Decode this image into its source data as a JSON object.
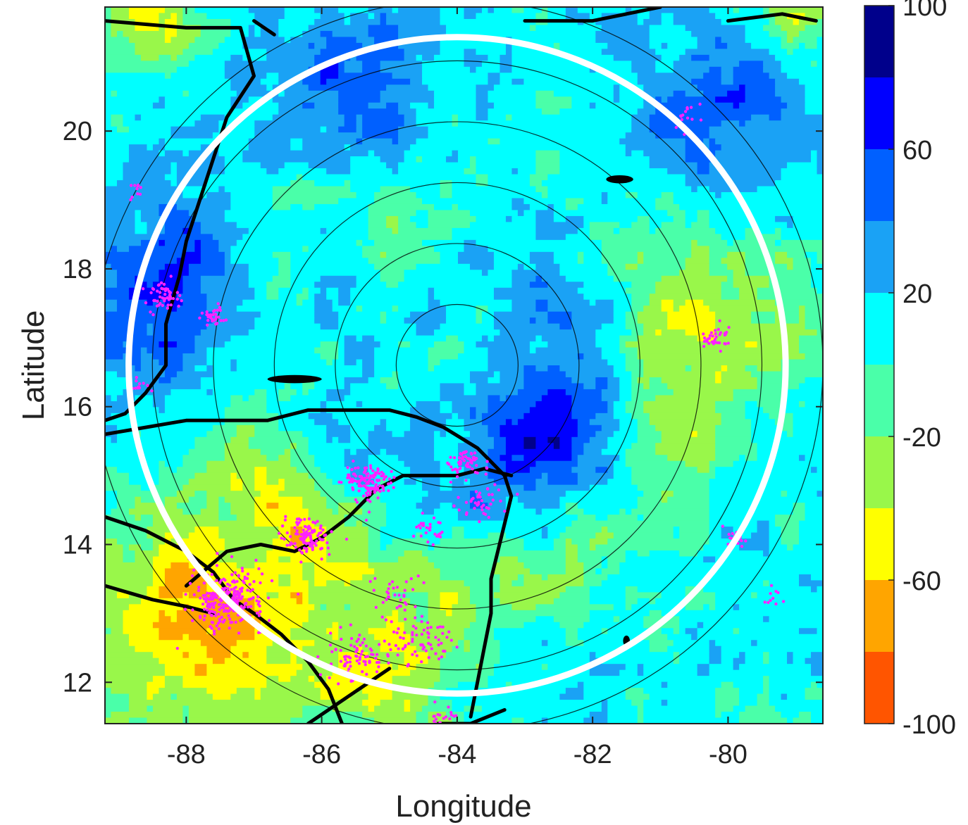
{
  "chart_data": {
    "type": "heatmap",
    "title": "",
    "xlabel": "Longitude",
    "ylabel": "Latitude",
    "xlim": [
      -89.2,
      -78.6
    ],
    "ylim": [
      11.4,
      21.8
    ],
    "x_ticks": [
      -88,
      -86,
      -84,
      -82,
      -80
    ],
    "y_ticks": [
      12,
      14,
      16,
      18,
      20
    ],
    "x_tick_labels": [
      "-88",
      "-86",
      "-84",
      "-82",
      "-80"
    ],
    "y_tick_labels": [
      "12",
      "14",
      "16",
      "18",
      "20"
    ],
    "colorbar": {
      "levels": [
        -100,
        -80,
        -60,
        -40,
        -20,
        0,
        20,
        40,
        60,
        80,
        100
      ],
      "labeled_ticks": [
        100,
        60,
        20,
        -20,
        -60,
        -100
      ],
      "labels": [
        "100",
        "60",
        "20",
        "-20",
        "-60",
        "-100"
      ],
      "colors": [
        "#ff5500",
        "#ffa500",
        "#ffff00",
        "#99f74a",
        "#4affa9",
        "#00ffff",
        "#1aa2f5",
        "#0060ff",
        "#0000ff",
        "#00008b"
      ]
    },
    "storm_center": {
      "lon": -84.0,
      "lat": 16.6
    },
    "range_rings_deg": [
      0.9,
      1.8,
      2.7,
      3.6,
      4.5,
      5.4
    ],
    "highlight_ring_deg": 4.85,
    "field_summary": "Tangential-like pattern: positive values (blue) near center east side and northwest, negative values (orange/red) in southwest over land and east periphery",
    "colors": {
      "lightning_points": "#ff22ff",
      "coastline": "#000000",
      "highlight_ring": "#ffffff",
      "range_rings": "#000000"
    },
    "lightning_clusters": [
      {
        "lon": -87.4,
        "lat": 13.2,
        "spread": 0.45,
        "count": 260
      },
      {
        "lon": -86.2,
        "lat": 14.1,
        "spread": 0.3,
        "count": 110
      },
      {
        "lon": -85.3,
        "lat": 14.9,
        "spread": 0.3,
        "count": 130
      },
      {
        "lon": -83.9,
        "lat": 15.2,
        "spread": 0.25,
        "count": 60
      },
      {
        "lon": -83.6,
        "lat": 14.6,
        "spread": 0.3,
        "count": 40
      },
      {
        "lon": -84.4,
        "lat": 14.2,
        "spread": 0.2,
        "count": 30
      },
      {
        "lon": -85.5,
        "lat": 12.4,
        "spread": 0.4,
        "count": 80
      },
      {
        "lon": -84.6,
        "lat": 12.6,
        "spread": 0.4,
        "count": 70
      },
      {
        "lon": -84.9,
        "lat": 13.3,
        "spread": 0.3,
        "count": 35
      },
      {
        "lon": -88.3,
        "lat": 17.6,
        "spread": 0.25,
        "count": 50
      },
      {
        "lon": -87.6,
        "lat": 17.3,
        "spread": 0.15,
        "count": 35
      },
      {
        "lon": -80.2,
        "lat": 17.0,
        "spread": 0.2,
        "count": 35
      },
      {
        "lon": -79.9,
        "lat": 14.1,
        "spread": 0.15,
        "count": 20
      },
      {
        "lon": -79.3,
        "lat": 13.2,
        "spread": 0.15,
        "count": 10
      },
      {
        "lon": -80.6,
        "lat": 20.2,
        "spread": 0.2,
        "count": 15
      },
      {
        "lon": -88.7,
        "lat": 16.3,
        "spread": 0.15,
        "count": 12
      },
      {
        "lon": -88.8,
        "lat": 19.1,
        "spread": 0.15,
        "count": 10
      },
      {
        "lon": -84.2,
        "lat": 11.5,
        "spread": 0.2,
        "count": 20
      }
    ]
  }
}
